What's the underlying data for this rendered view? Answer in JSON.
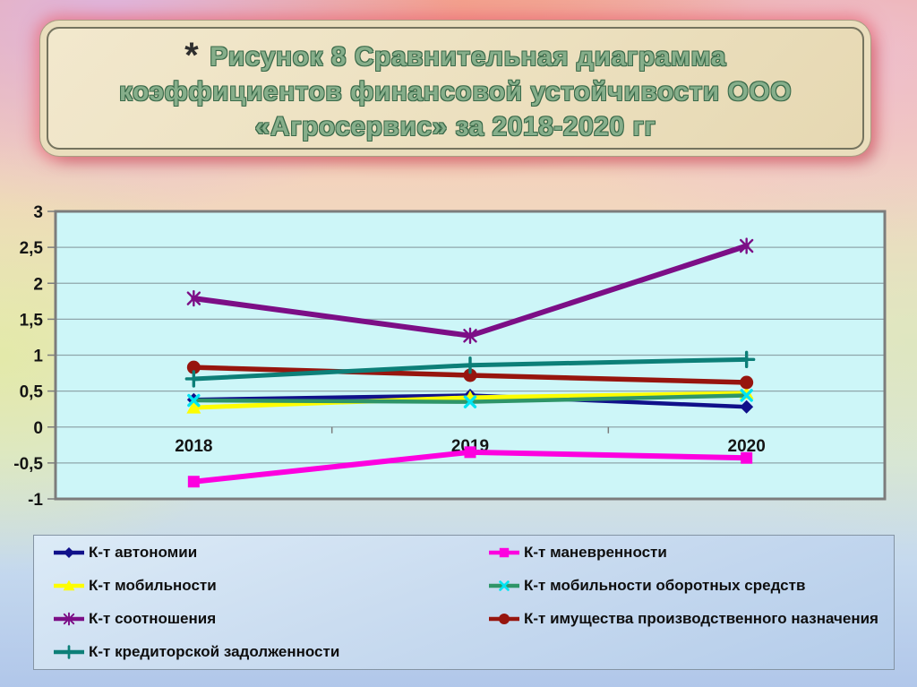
{
  "title": {
    "star": "*",
    "lines": [
      "Рисунок 8 Сравнительная диаграмма",
      "коэффициентов финансовой устойчивости ООО",
      "«Агросервис» за 2018-2020 гг"
    ]
  },
  "chart_data": {
    "type": "line",
    "title": "Рисунок 8 Сравнительная диаграмма коэффициентов финансовой устойчивости ООО «Агросервис» за 2018-2020 гг",
    "categories": [
      "2018",
      "2019",
      "2020"
    ],
    "series": [
      {
        "name": "К-т автономии",
        "values": [
          0.38,
          0.44,
          0.28
        ],
        "color": "#10108a",
        "marker": "diamond",
        "marker_color": "#10108a",
        "line_width": 4.5
      },
      {
        "name": "К-т маневренности",
        "values": [
          -0.76,
          -0.35,
          -0.43
        ],
        "color": "#fd00df",
        "marker": "square",
        "marker_color": "#fd00df",
        "line_width": 6
      },
      {
        "name": "К-т мобильности",
        "values": [
          0.27,
          0.41,
          0.47
        ],
        "color": "#fdfd00",
        "marker": "triangle",
        "marker_color": "#fdfd00",
        "line_width": 5
      },
      {
        "name": "К-т мобильности оборотных средств",
        "values": [
          0.37,
          0.35,
          0.44
        ],
        "color": "#2f9568",
        "marker": "x",
        "marker_color": "#00e4f2",
        "line_width": 4.5
      },
      {
        "name": "К-т соотношения",
        "values": [
          1.79,
          1.27,
          2.52
        ],
        "color": "#7c0e86",
        "marker": "star",
        "marker_color": "#7c0e86",
        "line_width": 6
      },
      {
        "name": "К-т имущества производственного назначения",
        "values": [
          0.83,
          0.72,
          0.62
        ],
        "color": "#97150e",
        "marker": "circle",
        "marker_color": "#97150e",
        "line_width": 5.5
      },
      {
        "name": "К-т кредиторской задолженности",
        "values": [
          0.67,
          0.86,
          0.94
        ],
        "color": "#0d7f78",
        "marker": "plus",
        "marker_color": "#0d7f78",
        "line_width": 5
      }
    ],
    "ylim": [
      -1,
      3
    ],
    "y_tick_values": [
      3,
      2.5,
      2,
      1.5,
      1,
      0.5,
      0,
      -0.5,
      -1
    ],
    "y_tick_labels": [
      "3",
      "2,5",
      "2",
      "1,5",
      "1",
      "0,5",
      "0",
      "-0,5",
      "-1"
    ],
    "grid": true,
    "legend_position": "bottom",
    "legend_columns": 2,
    "plot_bg": "#cdf6f8",
    "grid_color": "#8fa6ab",
    "border_color": "#7c7c7c",
    "axis_text_color": "#141414"
  }
}
